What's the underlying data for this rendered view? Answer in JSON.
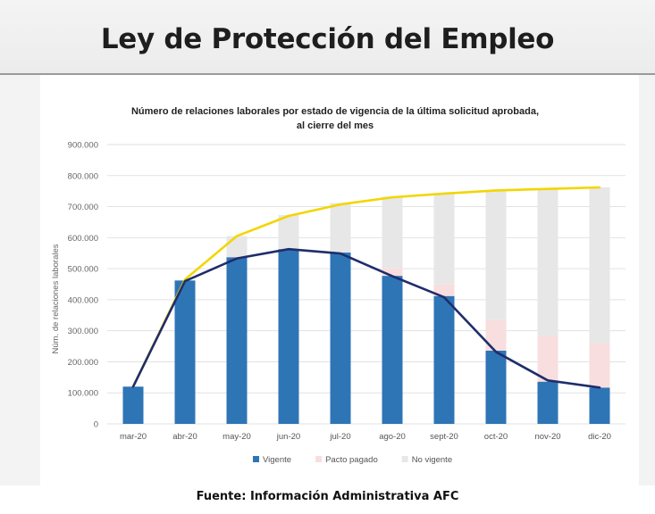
{
  "slide": {
    "title": "Ley de Protección del Empleo",
    "source": "Fuente: Información Administrativa AFC"
  },
  "chart_data": {
    "type": "bar",
    "title_line1": "Número de relaciones laborales por estado de vigencia de la última solicitud aprobada,",
    "title_line2": "al cierre del mes",
    "ylabel": "Núm. de relaciones laborales",
    "xlabel": "",
    "ylim": [
      0,
      900000
    ],
    "yticks": [
      "0",
      "100.000",
      "200.000",
      "300.000",
      "400.000",
      "500.000",
      "600.000",
      "700.000",
      "800.000",
      "900.000"
    ],
    "categories": [
      "mar-20",
      "abr-20",
      "may-20",
      "jun-20",
      "jul-20",
      "ago-20",
      "sept-20",
      "oct-20",
      "nov-20",
      "dic-20"
    ],
    "stacked": true,
    "series": [
      {
        "name": "Vigente",
        "color": "#2e75b6",
        "values": [
          120000,
          462000,
          537000,
          563000,
          552000,
          477000,
          412000,
          236000,
          136000,
          117000
        ]
      },
      {
        "name": "Pacto pagado",
        "color": "#f8dede",
        "values": [
          0,
          0,
          0,
          0,
          0,
          25000,
          37000,
          98000,
          147000,
          143000
        ]
      },
      {
        "name": "No vigente",
        "color": "#e7e7e7",
        "values": [
          0,
          0,
          68000,
          110000,
          160000,
          230000,
          292000,
          418000,
          474000,
          502000
        ]
      }
    ],
    "lines": [
      {
        "color": "#f2d600",
        "values": [
          120000,
          465000,
          605000,
          670000,
          707000,
          730000,
          742000,
          752000,
          757000,
          762000
        ]
      },
      {
        "color": "#1f2d6b",
        "values": [
          120000,
          460000,
          533000,
          563000,
          549000,
          476000,
          408000,
          232000,
          140000,
          117000
        ]
      }
    ],
    "legend_position": "bottom",
    "grid": true
  }
}
